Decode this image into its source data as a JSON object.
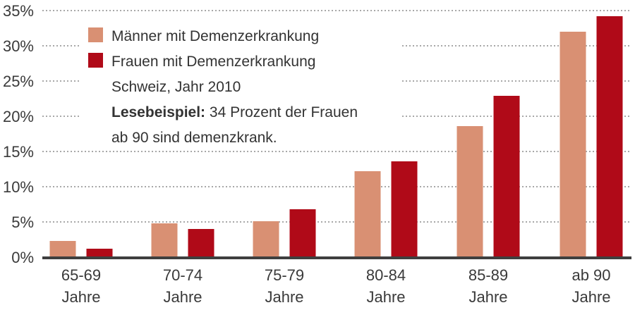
{
  "chart_data": {
    "type": "bar",
    "title": "",
    "xlabel": "",
    "ylabel": "",
    "ylim": [
      0,
      35
    ],
    "yticks": [
      0,
      5,
      10,
      15,
      20,
      25,
      30,
      35
    ],
    "ytick_labels": [
      "0%",
      "5%",
      "10%",
      "15%",
      "20%",
      "25%",
      "30%",
      "35%"
    ],
    "grid": true,
    "categories": [
      {
        "line1": "65-69",
        "line2": "Jahre"
      },
      {
        "line1": "70-74",
        "line2": "Jahre"
      },
      {
        "line1": "75-79",
        "line2": "Jahre"
      },
      {
        "line1": "80-84",
        "line2": "Jahre"
      },
      {
        "line1": "85-89",
        "line2": "Jahre"
      },
      {
        "line1": "ab 90",
        "line2": "Jahre"
      }
    ],
    "series": [
      {
        "name": "Männer mit Demenzerkrankung",
        "color": "#d99073",
        "values": [
          2.3,
          4.8,
          5.1,
          12.2,
          18.6,
          32.0
        ]
      },
      {
        "name": "Frauen mit Demenzerkrankung",
        "color": "#b00a18",
        "values": [
          1.2,
          4.0,
          6.8,
          13.6,
          22.9,
          34.2
        ]
      }
    ],
    "legend_placement": "top-left",
    "annotations": {
      "region": "Schweiz, Jahr 2010",
      "example_label": "Lesebeispiel:",
      "example_text_1": " 34 Prozent der Frauen",
      "example_text_2": "ab 90 sind demenzkrank."
    }
  },
  "colors": {
    "axis": "#3f3f3f",
    "grid": "#a8a8a8",
    "text": "#3a3a3a"
  }
}
